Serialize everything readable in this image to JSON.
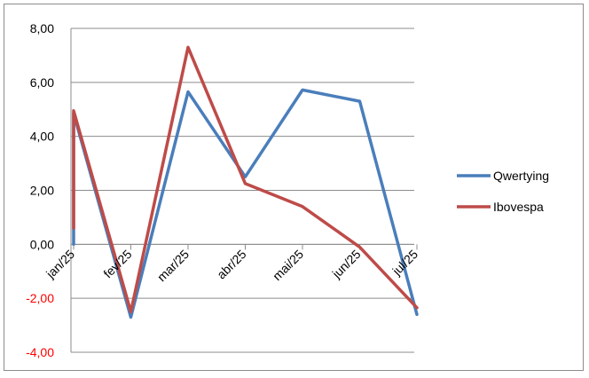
{
  "chart_data": {
    "type": "line",
    "categories": [
      "jan/25",
      "fev/25",
      "mar/25",
      "abr/25",
      "mai/25",
      "jun/25",
      "jul/25"
    ],
    "series": [
      {
        "name": "Qwertying",
        "color": "#4a7ebb",
        "values": [
          4.85,
          -2.7,
          5.65,
          2.5,
          5.72,
          5.3,
          -2.6
        ]
      },
      {
        "name": "Ibovespa",
        "color": "#be4b48",
        "values": [
          4.95,
          -2.5,
          7.3,
          2.25,
          1.4,
          -0.1,
          -2.35
        ]
      }
    ],
    "first_point_start_values": [
      0.0,
      0.6
    ],
    "ylim": [
      -4,
      8
    ],
    "yticks": [
      "8,00",
      "6,00",
      "4,00",
      "2,00",
      "0,00",
      "-2,00",
      "-4,00"
    ],
    "negative_tick_color": "#ff0000",
    "grid": true,
    "legend_position": "right",
    "title": "",
    "xlabel": "",
    "ylabel": ""
  }
}
